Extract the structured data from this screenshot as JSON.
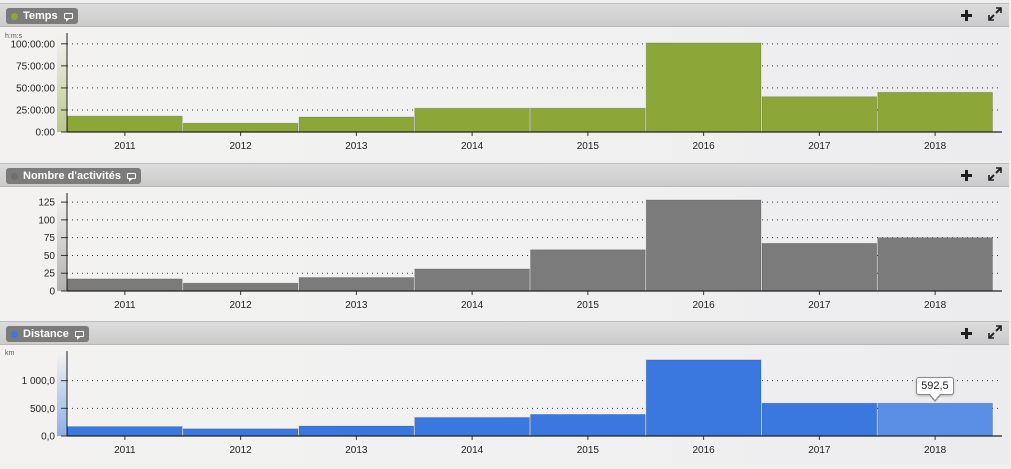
{
  "panels": [
    {
      "title": "Temps",
      "color": "#8ca637"
    },
    {
      "title": "Nombre d'activités",
      "color": "#7b7b7b"
    },
    {
      "title": "Distance",
      "color": "#3a78e0"
    }
  ],
  "chart_data": [
    {
      "type": "bar",
      "title": "Temps",
      "unit": "h:m:s",
      "categories": [
        "2011",
        "2012",
        "2013",
        "2014",
        "2015",
        "2016",
        "2017",
        "2018"
      ],
      "values": [
        18,
        10,
        17,
        27,
        27,
        101,
        40,
        45
      ],
      "y_ticks": [
        "0:00",
        "25:00:00",
        "50:00:00",
        "75:00:00",
        "100:00:00"
      ],
      "y_tick_values": [
        0,
        25,
        50,
        75,
        100
      ],
      "ylim": [
        0,
        110
      ],
      "bar_color": "#8ca637",
      "grid": true
    },
    {
      "type": "bar",
      "title": "Nombre d'activités",
      "unit": "",
      "categories": [
        "2011",
        "2012",
        "2013",
        "2014",
        "2015",
        "2016",
        "2017",
        "2018"
      ],
      "values": [
        17,
        11,
        19,
        31,
        58,
        128,
        67,
        75
      ],
      "y_ticks": [
        "0",
        "25",
        "50",
        "75",
        "100",
        "125"
      ],
      "y_tick_values": [
        0,
        25,
        50,
        75,
        100,
        125
      ],
      "ylim": [
        0,
        135
      ],
      "bar_color": "#7b7b7b",
      "grid": true
    },
    {
      "type": "bar",
      "title": "Distance",
      "unit": "km",
      "categories": [
        "2011",
        "2012",
        "2013",
        "2014",
        "2015",
        "2016",
        "2017",
        "2018"
      ],
      "values": [
        170,
        130,
        180,
        335,
        390,
        1375,
        592.5,
        592.5
      ],
      "y_ticks": [
        "0,0",
        "500,0",
        "1 000,0"
      ],
      "y_tick_values": [
        0,
        500,
        1000
      ],
      "ylim": [
        0,
        1500
      ],
      "bar_color": "#3a78e0",
      "highlight_color": "#5b8fe6",
      "highlight_index": 7,
      "tooltip": "592,5",
      "grid": true
    }
  ]
}
